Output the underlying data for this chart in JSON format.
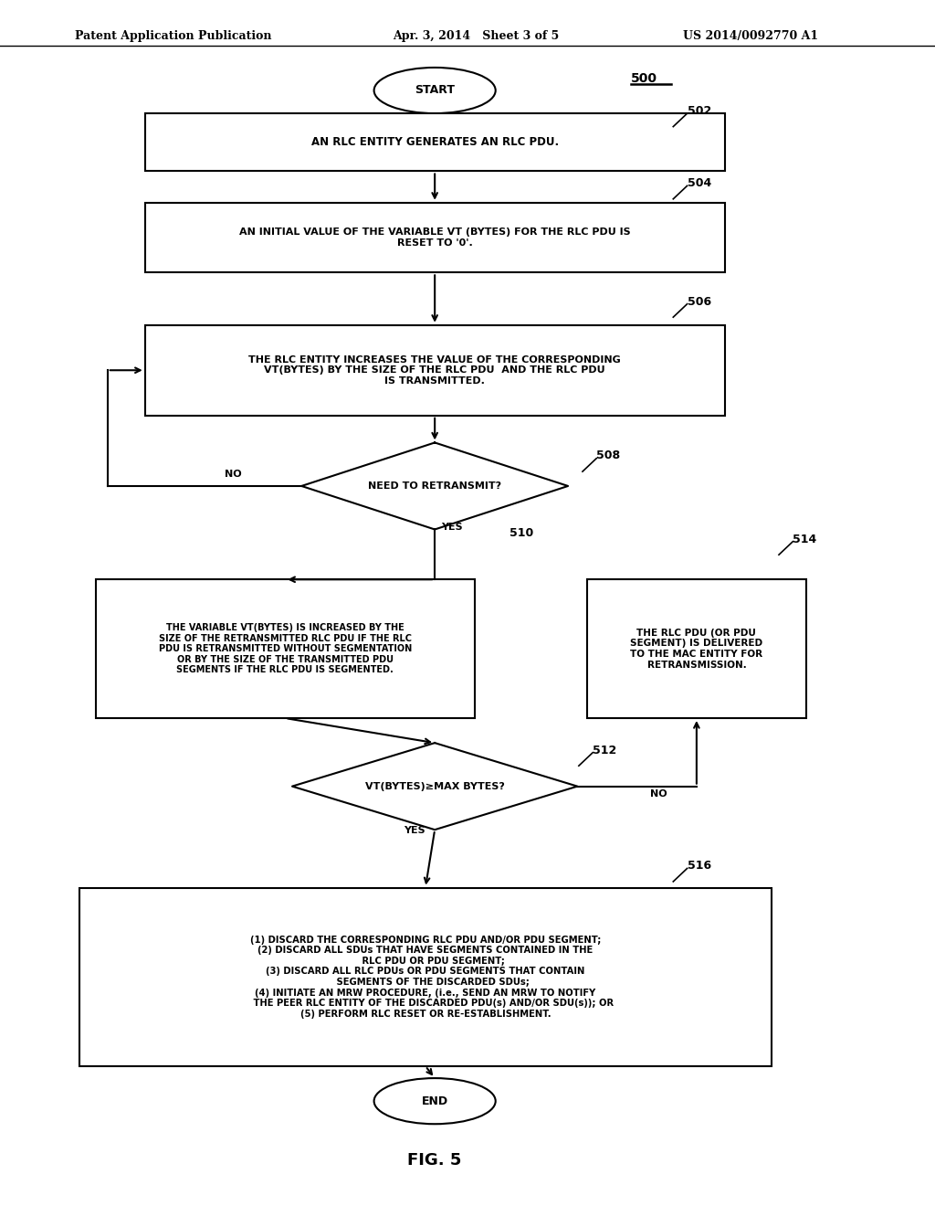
{
  "title_left": "Patent Application Publication",
  "title_mid": "Apr. 3, 2014   Sheet 3 of 5",
  "title_right": "US 2014/0092770 A1",
  "fig_label": "FIG. 5",
  "bg_color": "#ffffff",
  "start_label": "START",
  "end_label": "END",
  "b502_text": "AN RLC ENTITY GENERATES AN RLC PDU.",
  "b504_text": "AN INITIAL VALUE OF THE VARIABLE VT (BYTES) FOR THE RLC PDU IS\nRESET TO '0'.",
  "b506_text": "THE RLC ENTITY INCREASES THE VALUE OF THE CORRESPONDING\nVT(BYTES) BY THE SIZE OF THE RLC PDU  AND THE RLC PDU\nIS TRANSMITTED.",
  "d508_text": "NEED TO RETRANSMIT?",
  "b510_text": "THE VARIABLE VT(BYTES) IS INCREASED BY THE\nSIZE OF THE RETRANSMITTED RLC PDU IF THE RLC\nPDU IS RETRANSMITTED WITHOUT SEGMENTATION\nOR BY THE SIZE OF THE TRANSMITTED PDU\nSEGMENTS IF THE RLC PDU IS SEGMENTED.",
  "b514_text": "THE RLC PDU (OR PDU\nSEGMENT) IS DELIVERED\nTO THE MAC ENTITY FOR\nRETRANSMISSION.",
  "d512_text": "VT(BYTES)≥MAX BYTES?",
  "b516_text": "(1) DISCARD THE CORRESPONDING RLC PDU AND/OR PDU SEGMENT;\n(2) DISCARD ALL SDUs THAT HAVE SEGMENTS CONTAINED IN THE\n     RLC PDU OR PDU SEGMENT;\n(3) DISCARD ALL RLC PDUs OR PDU SEGMENTS THAT CONTAIN\n     SEGMENTS OF THE DISCARDED SDUs;\n(4) INITIATE AN MRW PROCEDURE, (i.e., SEND AN MRW TO NOTIFY\n     THE PEER RLC ENTITY OF THE DISCARDED PDU(s) AND/OR SDU(s)); OR\n(5) PERFORM RLC RESET OR RE-ESTABLISHMENT.",
  "tag_500": "500",
  "tag_502": "502",
  "tag_504": "504",
  "tag_506": "506",
  "tag_508": "508",
  "tag_510": "510",
  "tag_512": "512",
  "tag_514": "514",
  "tag_516": "516"
}
